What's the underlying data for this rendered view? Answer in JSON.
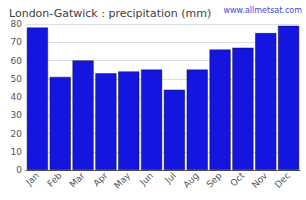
{
  "chart_data": {
    "type": "bar",
    "title": "London-Gatwick : precipitation (mm)",
    "categories": [
      "Jan",
      "Feb",
      "Mar",
      "Apr",
      "May",
      "Jun",
      "Jul",
      "Aug",
      "Sep",
      "Oct",
      "Nov",
      "Dec"
    ],
    "values": [
      78,
      51,
      60,
      53,
      54,
      55,
      44,
      55,
      66,
      67,
      75,
      79
    ],
    "color": "#1515e0",
    "ylim": [
      0,
      80
    ],
    "yticks": [
      0,
      10,
      20,
      30,
      40,
      50,
      60,
      70,
      80
    ],
    "grid": true,
    "annotations": [
      "www.allmetsat.com"
    ]
  }
}
